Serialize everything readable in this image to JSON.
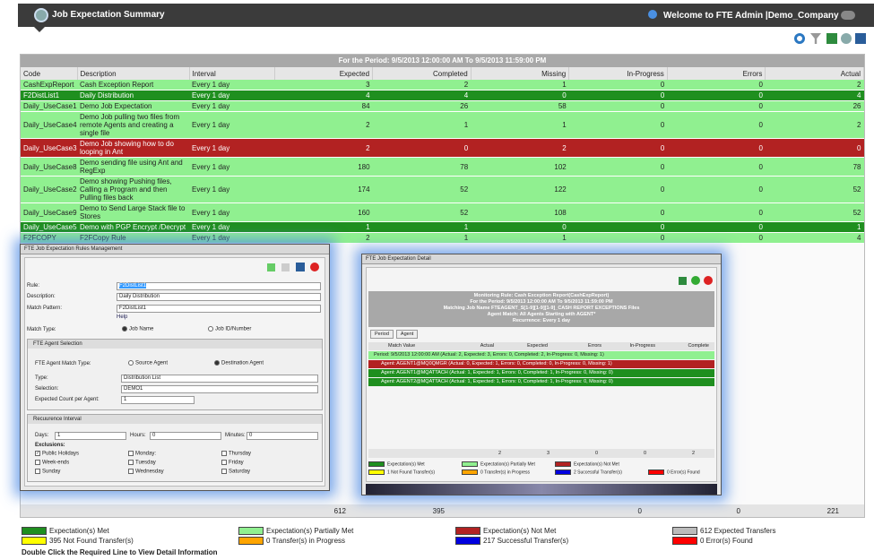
{
  "header": {
    "title": "Job Expectation Summary",
    "welcome": "Welcome to  FTE Admin |Demo_Company"
  },
  "summary": {
    "period": "For the Period: 9/5/2013 12:00:00 AM To 9/5/2013 11:59:00 PM",
    "columns": [
      "Code",
      "Description",
      "Interval",
      "Expected",
      "Completed",
      "Missing",
      "In-Progress",
      "Errors",
      "Actual"
    ],
    "rows": [
      {
        "status": "partial",
        "cells": [
          "CashExpReport",
          "Cash Exception Report",
          "Every 1 day",
          3,
          2,
          1,
          0,
          0,
          2
        ]
      },
      {
        "status": "met",
        "cells": [
          "F2DistList1",
          "Daily Distribution",
          "Every 1 day",
          4,
          4,
          0,
          0,
          0,
          4
        ]
      },
      {
        "status": "partial",
        "cells": [
          "Daily_UseCase1",
          "Demo Job Expectation",
          "Every 1 day",
          84,
          26,
          58,
          0,
          0,
          26
        ]
      },
      {
        "status": "partial",
        "cells": [
          "Daily_UseCase4",
          "Demo Job pulling two files from remote Agents and creating a single file",
          "Every 1 day",
          2,
          1,
          1,
          0,
          0,
          2
        ]
      },
      {
        "status": "notmet",
        "cells": [
          "Daily_UseCase3",
          "Demo Job showing how to do looping in Ant",
          "Every 1 day",
          2,
          0,
          2,
          0,
          0,
          0
        ]
      },
      {
        "status": "partial",
        "cells": [
          "Daily_UseCase8",
          "Demo sending file using Ant and RegExp",
          "Every 1 day",
          180,
          78,
          102,
          0,
          0,
          78
        ]
      },
      {
        "status": "partial",
        "cells": [
          "Daily_UseCase2",
          "Demo showing Pushing files, Calling a Program and then Pulling files back",
          "Every 1 day",
          174,
          52,
          122,
          0,
          0,
          52
        ]
      },
      {
        "status": "partial",
        "cells": [
          "Daily_UseCase9",
          "Demo to Send Large Stack file to Stores",
          "Every 1 day",
          160,
          52,
          108,
          0,
          0,
          52
        ]
      },
      {
        "status": "met",
        "cells": [
          "Daily_UseCase5",
          "Demo with PGP Encrypt /Decrypt",
          "Every 1 day",
          1,
          1,
          0,
          0,
          0,
          1
        ]
      },
      {
        "status": "partial",
        "cells": [
          "F2FCOPY",
          "F2FCopy Rule",
          "Every 1 day",
          2,
          1,
          1,
          0,
          0,
          4
        ]
      }
    ],
    "totals": [
      612,
      395,
      0,
      0,
      221
    ],
    "legend": [
      {
        "status": "met",
        "label": "Expectation(s) Met"
      },
      {
        "status": "partial",
        "label": "Expectation(s) Partially Met"
      },
      {
        "status": "notmet",
        "label": "Expectation(s) Not Met"
      },
      {
        "status": "expected",
        "label": "612 Expected Transfers"
      },
      {
        "status": "notfound",
        "label": "395 Not Found Transfer(s)"
      },
      {
        "status": "progress",
        "label": "0 Transfer(s) in Progress"
      },
      {
        "status": "success",
        "label": "217 Successful Transfer(s)"
      },
      {
        "status": "error",
        "label": "0 Error(s) Found"
      }
    ],
    "hint": "Double Click the Required Line to View Detail Information"
  },
  "rules_dialog": {
    "title": "FTE Job Expectation Rules Management",
    "rule_label": "Rule:",
    "rule": "F2DistList1",
    "description_label": "Description:",
    "description": "Daily Distribution",
    "pattern_label": "Match Pattern:",
    "pattern": "F2DistList1",
    "help": "Help",
    "match_type_label": "Match Type:",
    "match_types": [
      {
        "label": "Job Name",
        "checked": true
      },
      {
        "label": "Job ID/Number",
        "checked": false
      }
    ],
    "agent_section": "FTE Agent Selection",
    "agent_match_label": "FTE Agent Match Type:",
    "agent_match": [
      {
        "label": "Source Agent",
        "checked": false
      },
      {
        "label": "Destination Agent",
        "checked": true
      }
    ],
    "type_label": "Type:",
    "type": "Distribution List",
    "selection_label": "Selection:",
    "selection": "DEMO1",
    "count_label": "Expected Count per Agent:",
    "count": "1",
    "recurrence_section": "Recuurence Interval",
    "days_label": "Days:",
    "days": "1",
    "hours_label": "Hours:",
    "hours": "0",
    "minutes_label": "Minutes:",
    "minutes": "0",
    "exclusions_label": "Exclusions:",
    "exclusions": [
      {
        "label": "Public Holidays",
        "checked": true
      },
      {
        "label": "Monday:",
        "checked": false
      },
      {
        "label": "Thursday",
        "checked": false
      },
      {
        "label": "Week-ends",
        "checked": false
      },
      {
        "label": "Tuesday",
        "checked": false
      },
      {
        "label": "Friday",
        "checked": false
      },
      {
        "label": "Sunday",
        "checked": false
      },
      {
        "label": "Wednesday",
        "checked": false
      },
      {
        "label": "Saturday",
        "checked": false
      }
    ]
  },
  "detail_dialog": {
    "title": "FTE Job Expectation Detail",
    "info": [
      "Monitoring Rule: Cash Exception Report(CashExpReport)",
      "For the Period: 9/5/2013 12:00:00 AM To 9/5/2013 11:59:00 PM",
      "Matching Job Name FTEAGENT_S[1-9][1-9][1-9]_CASH REPORT EXCEPTIONS Files",
      "Agent Match: All Agents Starting with AGENT*",
      "Recurrence: Every 1 day"
    ],
    "group_buttons": [
      "Period",
      "Agent"
    ],
    "columns": [
      "Match Value",
      "Actual",
      "Expected",
      "Errors",
      "In-Progress",
      "Complete"
    ],
    "rows": [
      {
        "status": "partial",
        "text": "Period: 9/5/2013 12:00:00 AM (Actual: 2, Expected: 3, Errors: 0, Completed: 2, In-Progress: 0, Missing: 1)"
      },
      {
        "status": "notmet",
        "text": "Agent: AGENT1@MQ0QMGR (Actual: 0, Expected: 1, Errors: 0, Completed: 0, In-Progress: 0, Missing: 1)"
      },
      {
        "status": "met",
        "text": "Agent: AGENT1@MQATTACH (Actual: 1, Expected: 1, Errors: 0, Completed: 1, In-Progress: 0, Missing: 0)"
      },
      {
        "status": "met",
        "text": "Agent: AGENT2@MQATTACH (Actual: 1, Expected: 1, Errors: 0, Completed: 1, In-Progress: 0, Missing: 0)"
      }
    ],
    "totals": [
      2,
      3,
      0,
      0,
      2
    ],
    "legend": [
      {
        "status": "met",
        "label": "Expectation(s) Met"
      },
      {
        "status": "partial",
        "label": "Expectation(s) Partially Met"
      },
      {
        "status": "notmet",
        "label": "Expectation(s) Not Met"
      },
      {
        "status": "notfound",
        "label": "1 Not Found Transfer(s)"
      },
      {
        "status": "progress",
        "label": "0 Transfer(s) in Progress"
      },
      {
        "status": "success",
        "label": "2 Successful Transfer(s)"
      },
      {
        "status": "error",
        "label": "0 Error(s) Found"
      }
    ]
  }
}
